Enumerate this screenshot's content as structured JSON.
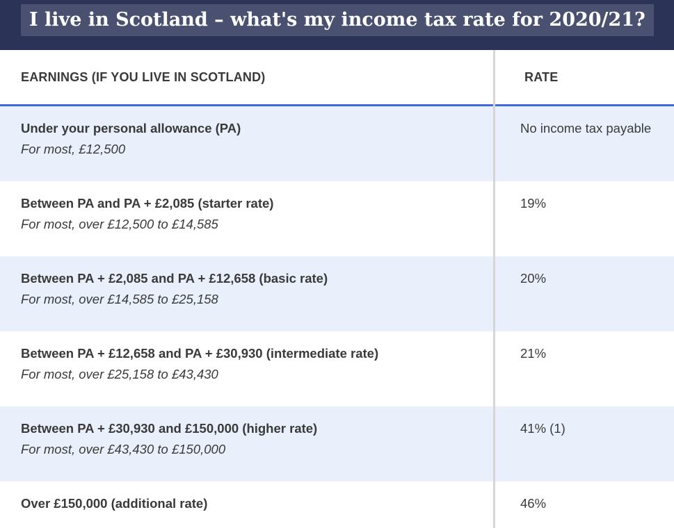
{
  "title": "I live in Scotland – what's my income tax rate for 2020/21?",
  "table": {
    "headers": {
      "earnings": "EARNINGS (IF YOU LIVE IN SCOTLAND)",
      "rate": "RATE"
    },
    "rows": [
      {
        "band": "Under your personal allowance (PA)",
        "detail": "For most, £12,500",
        "rate": "No income tax payable"
      },
      {
        "band": "Between PA and PA + £2,085 (starter rate)",
        "detail": "For most, over £12,500 to £14,585",
        "rate": "19%"
      },
      {
        "band": "Between PA + £2,085 and PA + £12,658 (basic rate)",
        "detail": "For most, over £14,585 to £25,158",
        "rate": "20%"
      },
      {
        "band": "Between PA + £12,658 and PA + £30,930 (intermediate rate)",
        "detail": "For most, over £25,158 to £43,430",
        "rate": "21%"
      },
      {
        "band": "Between PA + £30,930 and £150,000 (higher rate)",
        "detail": "For most, over £43,430 to £150,000",
        "rate": "41% (1)"
      },
      {
        "band": "Over £150,000 (additional rate)",
        "detail": "",
        "rate": "46%"
      }
    ]
  },
  "colors": {
    "header_bg": "#2b3456",
    "title_bg": "#4a5170",
    "header_rule": "#3d6ad6",
    "row_shade": "#e9f0fb"
  }
}
